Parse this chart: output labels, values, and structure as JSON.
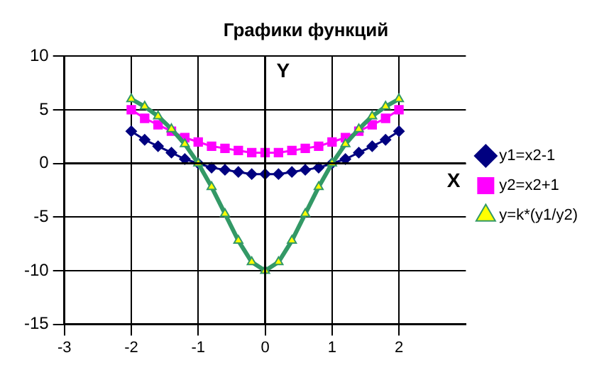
{
  "chart_data": {
    "type": "line",
    "title": "Графики функций",
    "xlabel": "X",
    "ylabel": "Y",
    "x": [
      -2,
      -1.8,
      -1.6,
      -1.4,
      -1.2,
      -1,
      -0.8,
      -0.6,
      -0.4,
      -0.2,
      0,
      0.2,
      0.4,
      0.6,
      0.8,
      1,
      1.2,
      1.4,
      1.6,
      1.8,
      2
    ],
    "series": [
      {
        "name": "y1=x2-1",
        "color": "#000080",
        "marker": "diamond",
        "values": [
          3,
          2.2,
          1.6,
          1,
          0.4,
          0,
          -0.4,
          -0.6,
          -0.8,
          -1,
          -1,
          -1,
          -0.8,
          -0.6,
          -0.4,
          0,
          0.4,
          1,
          1.6,
          2.2,
          3
        ]
      },
      {
        "name": "y2=x2+1",
        "color": "#ff00ff",
        "marker": "square",
        "values": [
          5,
          4.2,
          3.6,
          3,
          2.4,
          2,
          1.6,
          1.4,
          1.2,
          1,
          1,
          1,
          1.2,
          1.4,
          1.6,
          2,
          2.4,
          3,
          3.6,
          4.2,
          5
        ]
      },
      {
        "name": "y=k*(y1/y2)",
        "color": "#339966",
        "marker": "triangle",
        "values": [
          6,
          5.3,
          4.4,
          3.2,
          1.8,
          0,
          -2.2,
          -4.7,
          -7.2,
          -9.2,
          -10,
          -9.2,
          -7.2,
          -4.7,
          -2.2,
          0,
          1.8,
          3.2,
          4.4,
          5.3,
          6
        ]
      }
    ],
    "xlim": [
      -3,
      3
    ],
    "xticks": [
      -3,
      -2,
      -1,
      0,
      1,
      2
    ],
    "ylim": [
      -15,
      10
    ],
    "yticks": [
      -15,
      -10,
      -5,
      0,
      5,
      10
    ],
    "grid": true,
    "legend": "right",
    "line_style": "solid"
  }
}
